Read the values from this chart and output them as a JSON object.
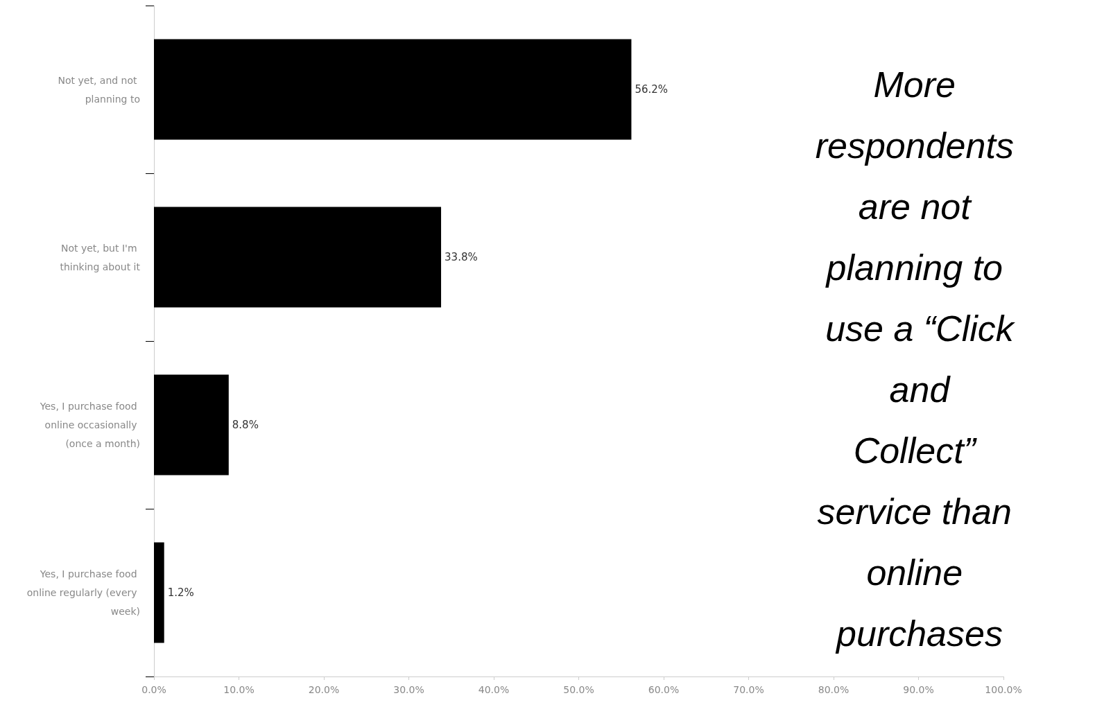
{
  "chart_data": {
    "type": "bar",
    "orientation": "horizontal",
    "categories": [
      "Not yet, and not planning to",
      "Not yet, but I'm thinking about it",
      "Yes, I purchase food online occasionally (once a month)",
      "Yes, I purchase food online regularly (every week)"
    ],
    "values": [
      56.2,
      33.8,
      8.8,
      1.2
    ],
    "value_labels": [
      "56.2%",
      "33.8%",
      "8.8%",
      "1.2%"
    ],
    "color": "#000000",
    "xlim": [
      0,
      100
    ],
    "xticks": [
      {
        "value": 0,
        "label": "0.0%"
      },
      {
        "value": 10,
        "label": "10.0%"
      },
      {
        "value": 20,
        "label": "20.0%"
      },
      {
        "value": 30,
        "label": "30.0%"
      },
      {
        "value": 40,
        "label": "40.0%"
      },
      {
        "value": 50,
        "label": "50.0%"
      },
      {
        "value": 60,
        "label": "60.0%"
      },
      {
        "value": 70,
        "label": "70.0%"
      },
      {
        "value": 80,
        "label": "80.0%"
      },
      {
        "value": 90,
        "label": "90.0%"
      },
      {
        "value": 100,
        "label": "100.0%"
      }
    ],
    "grid": false,
    "annotations": [
      "More respondents are not planning to use a “Click and Collect” service than online purchases"
    ]
  }
}
